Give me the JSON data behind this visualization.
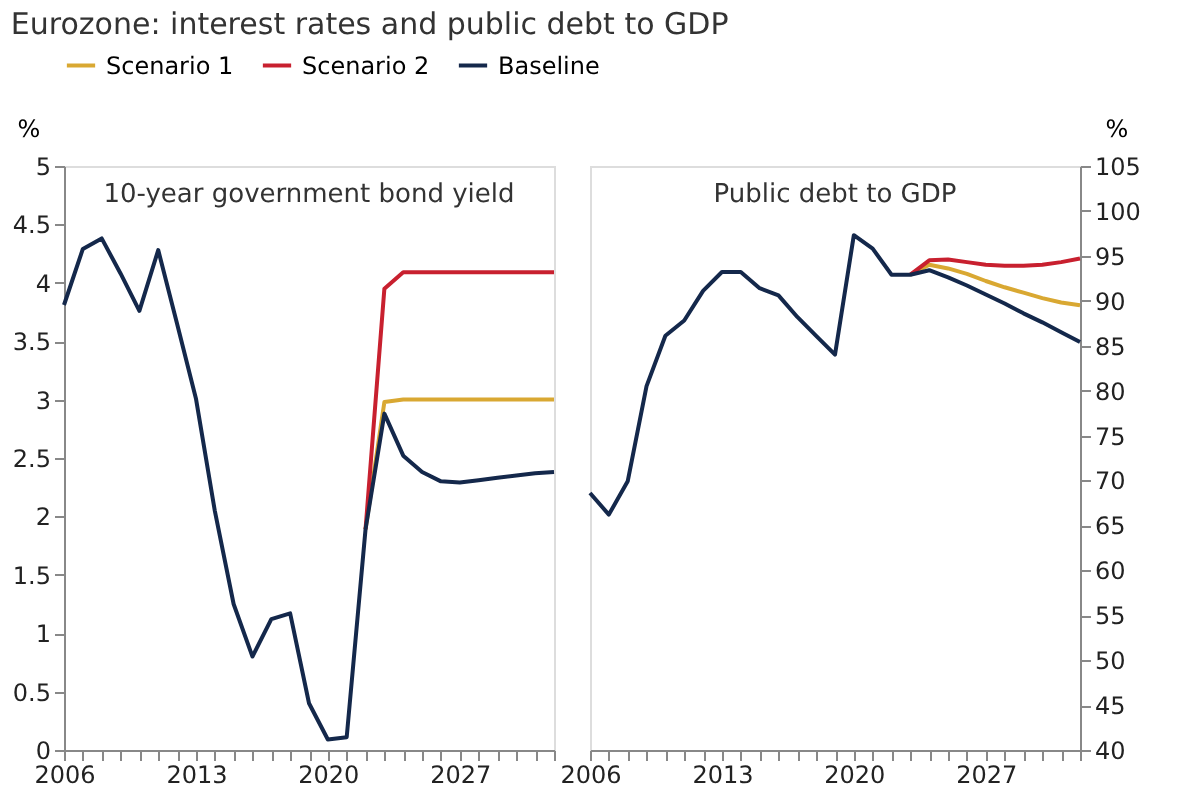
{
  "chart_data": [
    {
      "type": "line",
      "title": "Eurozone: interest rates and public debt to GDP",
      "ylabel": "%",
      "annotations": [
        "10-year government bond yield"
      ],
      "legend": "top",
      "grid": false,
      "xlim": [
        2006,
        2032
      ],
      "xticks": [
        2006,
        {
          "value": 2007,
          "label": null
        },
        {
          "value": 2008,
          "label": null
        },
        {
          "value": 2009,
          "label": null
        },
        {
          "value": 2010,
          "label": null
        },
        {
          "value": 2011,
          "label": null
        },
        {
          "value": 2012,
          "label": null
        },
        2013,
        {
          "value": 2014,
          "label": null
        },
        {
          "value": 2015,
          "label": null
        },
        {
          "value": 2016,
          "label": null
        },
        {
          "value": 2017,
          "label": null
        },
        {
          "value": 2018,
          "label": null
        },
        {
          "value": 2019,
          "label": null
        },
        2020,
        {
          "value": 2021,
          "label": null
        },
        {
          "value": 2022,
          "label": null
        },
        {
          "value": 2023,
          "label": null
        },
        {
          "value": 2024,
          "label": null
        },
        {
          "value": 2025,
          "label": null
        },
        {
          "value": 2026,
          "label": null
        },
        2027,
        {
          "value": 2028,
          "label": null
        },
        {
          "value": 2029,
          "label": null
        },
        {
          "value": 2030,
          "label": null
        },
        {
          "value": 2031,
          "label": null
        },
        {
          "value": 2032,
          "label": null
        }
      ],
      "ylim": [
        0,
        5
      ],
      "yticks": [
        0,
        0.5,
        1,
        1.5,
        2,
        2.5,
        3,
        3.5,
        4,
        4.5,
        5
      ],
      "series": [
        {
          "name": "Scenario 1",
          "color": "#d9a832",
          "x": [
            2022,
            2023,
            2024,
            2025,
            2026,
            2027,
            2028,
            2029,
            2030,
            2031,
            2032
          ],
          "values": [
            1.89,
            2.98,
            3.0,
            3.0,
            3.0,
            3.0,
            3.0,
            3.0,
            3.0,
            3.0,
            3.0
          ]
        },
        {
          "name": "Scenario 2",
          "color": "#c8202f",
          "x": [
            2022,
            2023,
            2024,
            2025,
            2026,
            2027,
            2028,
            2029,
            2030,
            2031,
            2032
          ],
          "values": [
            1.89,
            3.95,
            4.09,
            4.09,
            4.09,
            4.09,
            4.09,
            4.09,
            4.09,
            4.09,
            4.09
          ]
        },
        {
          "name": "Baseline",
          "color": "#14284b",
          "x": [
            2006,
            2007,
            2008,
            2009,
            2010,
            2011,
            2012,
            2013,
            2014,
            2015,
            2016,
            2017,
            2018,
            2019,
            2020,
            2021,
            2022,
            2023,
            2024,
            2025,
            2026,
            2027,
            2028,
            2029,
            2030,
            2031,
            2032
          ],
          "values": [
            3.81,
            4.29,
            4.38,
            4.08,
            3.76,
            4.28,
            3.65,
            3.01,
            2.05,
            1.25,
            0.8,
            1.12,
            1.17,
            0.4,
            0.09,
            0.11,
            1.89,
            2.88,
            2.52,
            2.38,
            2.3,
            2.29,
            2.31,
            2.33,
            2.35,
            2.37,
            2.38
          ]
        }
      ]
    },
    {
      "type": "line",
      "ylabel": "%",
      "annotations": [
        "Public debt to GDP"
      ],
      "legend": "top",
      "grid": false,
      "xlim": [
        2006,
        2032
      ],
      "xticks": [
        2006,
        {
          "value": 2007,
          "label": null
        },
        {
          "value": 2008,
          "label": null
        },
        {
          "value": 2009,
          "label": null
        },
        {
          "value": 2010,
          "label": null
        },
        {
          "value": 2011,
          "label": null
        },
        {
          "value": 2012,
          "label": null
        },
        2013,
        {
          "value": 2014,
          "label": null
        },
        {
          "value": 2015,
          "label": null
        },
        {
          "value": 2016,
          "label": null
        },
        {
          "value": 2017,
          "label": null
        },
        {
          "value": 2018,
          "label": null
        },
        {
          "value": 2019,
          "label": null
        },
        2020,
        {
          "value": 2021,
          "label": null
        },
        {
          "value": 2022,
          "label": null
        },
        {
          "value": 2023,
          "label": null
        },
        {
          "value": 2024,
          "label": null
        },
        {
          "value": 2025,
          "label": null
        },
        {
          "value": 2026,
          "label": null
        },
        2027,
        {
          "value": 2028,
          "label": null
        },
        {
          "value": 2029,
          "label": null
        },
        {
          "value": 2030,
          "label": null
        },
        {
          "value": 2031,
          "label": null
        },
        {
          "value": 2032,
          "label": null
        }
      ],
      "ylim": [
        40,
        105
      ],
      "yticks": [
        40,
        45,
        50,
        55,
        60,
        65,
        70,
        75,
        80,
        85,
        90,
        95,
        100,
        105
      ],
      "series": [
        {
          "name": "Scenario 1",
          "color": "#d9a832",
          "x": [
            2023,
            2024,
            2025,
            2026,
            2027,
            2028,
            2029,
            2030,
            2031,
            2032
          ],
          "values": [
            92.9,
            94.0,
            93.6,
            93.0,
            92.2,
            91.5,
            90.9,
            90.3,
            89.8,
            89.5
          ]
        },
        {
          "name": "Scenario 2",
          "color": "#c8202f",
          "x": [
            2023,
            2024,
            2025,
            2026,
            2027,
            2028,
            2029,
            2030,
            2031,
            2032
          ],
          "values": [
            92.9,
            94.5,
            94.6,
            94.3,
            94.0,
            93.9,
            93.9,
            94.0,
            94.3,
            94.7
          ]
        },
        {
          "name": "Baseline",
          "color": "#14284b",
          "x": [
            2006,
            2007,
            2008,
            2009,
            2010,
            2011,
            2012,
            2013,
            2014,
            2015,
            2016,
            2017,
            2018,
            2019,
            2020,
            2021,
            2022,
            2023,
            2024,
            2025,
            2026,
            2027,
            2028,
            2029,
            2030,
            2031,
            2032
          ],
          "values": [
            68.6,
            66.2,
            69.9,
            80.5,
            86.1,
            87.8,
            91.1,
            93.2,
            93.2,
            91.4,
            90.6,
            88.2,
            86.1,
            84.0,
            97.3,
            95.8,
            92.9,
            92.9,
            93.4,
            92.6,
            91.7,
            90.7,
            89.7,
            88.6,
            87.6,
            86.5,
            85.4
          ]
        }
      ]
    }
  ]
}
